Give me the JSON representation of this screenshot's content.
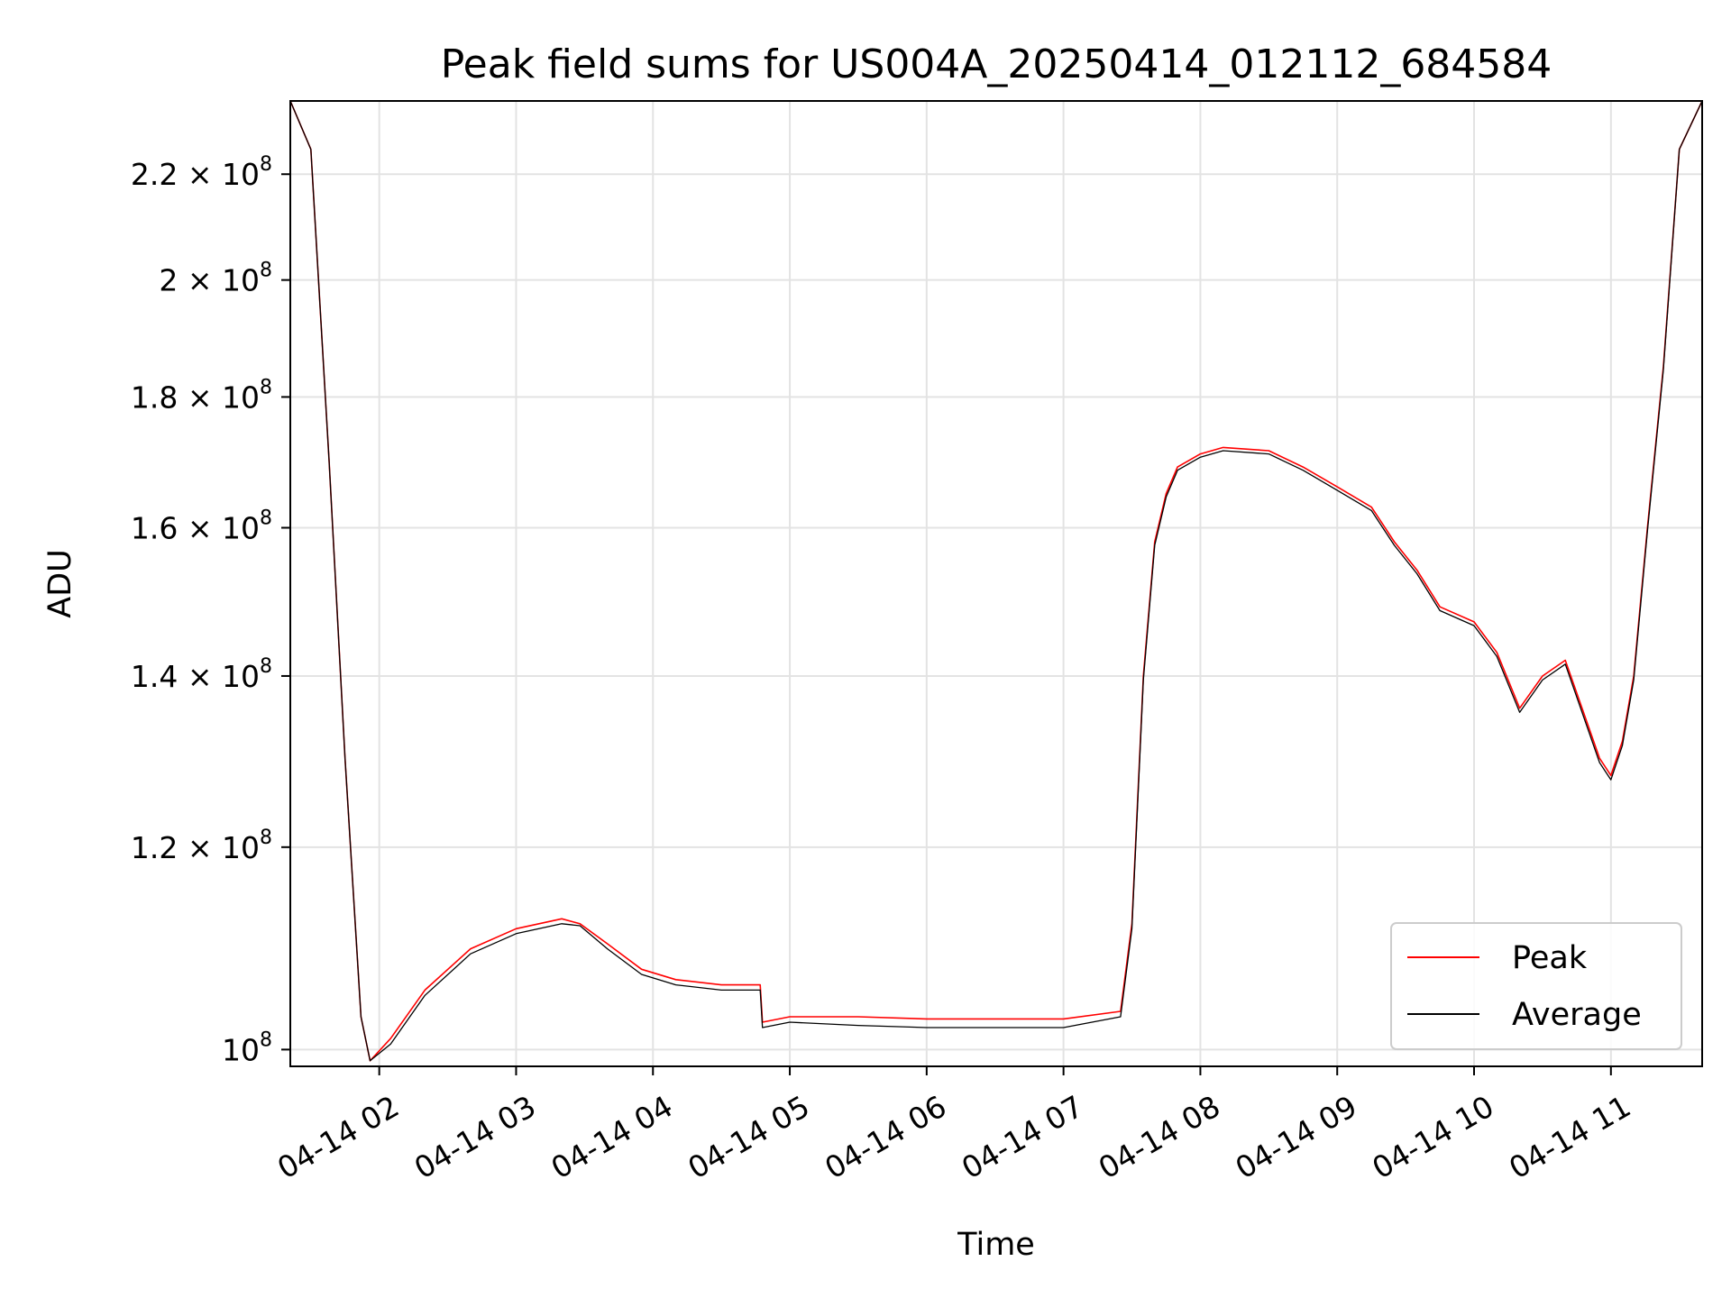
{
  "chart_data": {
    "type": "line",
    "title": "Peak field sums for US004A_20250414_012112_684584",
    "xlabel": "Time",
    "ylabel": "ADU",
    "yscale": "log",
    "grid": true,
    "legend_position": "lower right",
    "xlim": [
      "2025-04-14 01:21",
      "2025-04-14 11:40"
    ],
    "ylim": [
      98500000,
      235000000
    ],
    "x_ticks": [
      "04-14 02",
      "04-14 03",
      "04-14 04",
      "04-14 05",
      "04-14 06",
      "04-14 07",
      "04-14 08",
      "04-14 09",
      "04-14 10",
      "04-14 11"
    ],
    "x_tick_values": [
      "2025-04-14 02:00",
      "2025-04-14 03:00",
      "2025-04-14 04:00",
      "2025-04-14 05:00",
      "2025-04-14 06:00",
      "2025-04-14 07:00",
      "2025-04-14 08:00",
      "2025-04-14 09:00",
      "2025-04-14 10:00",
      "2025-04-14 11:00"
    ],
    "y_ticks": [
      {
        "value": 100000000,
        "mantissa": "10",
        "exponent": "8"
      },
      {
        "value": 120000000,
        "mantissa": "1.2 × 10",
        "exponent": "8"
      },
      {
        "value": 140000000,
        "mantissa": "1.4 × 10",
        "exponent": "8"
      },
      {
        "value": 160000000,
        "mantissa": "1.6 × 10",
        "exponent": "8"
      },
      {
        "value": 180000000,
        "mantissa": "1.8 × 10",
        "exponent": "8"
      },
      {
        "value": 200000000,
        "mantissa": "2 × 10",
        "exponent": "8"
      },
      {
        "value": 220000000,
        "mantissa": "2.2 × 10",
        "exponent": "8"
      }
    ],
    "series": [
      {
        "name": "Peak",
        "color": "#ff0000",
        "x": [
          "2025-04-14 01:21",
          "2025-04-14 01:30",
          "2025-04-14 01:38",
          "2025-04-14 01:45",
          "2025-04-14 01:52",
          "2025-04-14 01:56",
          "2025-04-14 02:05",
          "2025-04-14 02:20",
          "2025-04-14 02:40",
          "2025-04-14 03:00",
          "2025-04-14 03:20",
          "2025-04-14 03:28",
          "2025-04-14 03:40",
          "2025-04-14 03:55",
          "2025-04-14 04:10",
          "2025-04-14 04:30",
          "2025-04-14 04:47",
          "2025-04-14 04:48",
          "2025-04-14 05:00",
          "2025-04-14 05:30",
          "2025-04-14 06:00",
          "2025-04-14 06:30",
          "2025-04-14 07:00",
          "2025-04-14 07:25",
          "2025-04-14 07:30",
          "2025-04-14 07:35",
          "2025-04-14 07:40",
          "2025-04-14 07:45",
          "2025-04-14 07:50",
          "2025-04-14 08:00",
          "2025-04-14 08:10",
          "2025-04-14 08:30",
          "2025-04-14 08:45",
          "2025-04-14 09:00",
          "2025-04-14 09:15",
          "2025-04-14 09:25",
          "2025-04-14 09:35",
          "2025-04-14 09:45",
          "2025-04-14 10:00",
          "2025-04-14 10:10",
          "2025-04-14 10:20",
          "2025-04-14 10:30",
          "2025-04-14 10:40",
          "2025-04-14 10:55",
          "2025-04-14 11:00",
          "2025-04-14 11:05",
          "2025-04-14 11:10",
          "2025-04-14 11:16",
          "2025-04-14 11:23",
          "2025-04-14 11:30",
          "2025-04-14 11:40"
        ],
        "values": [
          235000000,
          225000000,
          170000000,
          130000000,
          103000000,
          99000000,
          101000000,
          105500000,
          109500000,
          111500000,
          112500000,
          112000000,
          110000000,
          107500000,
          106500000,
          106000000,
          106000000,
          102500000,
          103000000,
          103000000,
          102800000,
          102800000,
          102800000,
          103500000,
          112000000,
          140000000,
          158000000,
          165000000,
          169000000,
          171000000,
          172000000,
          171500000,
          169000000,
          166000000,
          163000000,
          158000000,
          154000000,
          149000000,
          147000000,
          143000000,
          136000000,
          140000000,
          142000000,
          130000000,
          128000000,
          132000000,
          140000000,
          160000000,
          185000000,
          225000000,
          235000000
        ]
      },
      {
        "name": "Average",
        "color": "#000000",
        "x": [
          "2025-04-14 01:21",
          "2025-04-14 01:30",
          "2025-04-14 01:38",
          "2025-04-14 01:45",
          "2025-04-14 01:52",
          "2025-04-14 01:56",
          "2025-04-14 02:05",
          "2025-04-14 02:20",
          "2025-04-14 02:40",
          "2025-04-14 03:00",
          "2025-04-14 03:20",
          "2025-04-14 03:28",
          "2025-04-14 03:40",
          "2025-04-14 03:55",
          "2025-04-14 04:10",
          "2025-04-14 04:30",
          "2025-04-14 04:47",
          "2025-04-14 04:48",
          "2025-04-14 05:00",
          "2025-04-14 05:30",
          "2025-04-14 06:00",
          "2025-04-14 06:30",
          "2025-04-14 07:00",
          "2025-04-14 07:25",
          "2025-04-14 07:30",
          "2025-04-14 07:35",
          "2025-04-14 07:40",
          "2025-04-14 07:45",
          "2025-04-14 07:50",
          "2025-04-14 08:00",
          "2025-04-14 08:10",
          "2025-04-14 08:30",
          "2025-04-14 08:45",
          "2025-04-14 09:00",
          "2025-04-14 09:15",
          "2025-04-14 09:25",
          "2025-04-14 09:35",
          "2025-04-14 09:45",
          "2025-04-14 10:00",
          "2025-04-14 10:10",
          "2025-04-14 10:20",
          "2025-04-14 10:30",
          "2025-04-14 10:40",
          "2025-04-14 10:55",
          "2025-04-14 11:00",
          "2025-04-14 11:05",
          "2025-04-14 11:10",
          "2025-04-14 11:16",
          "2025-04-14 11:23",
          "2025-04-14 11:30",
          "2025-04-14 11:40"
        ],
        "values": [
          235000000,
          225000000,
          170000000,
          130000000,
          103000000,
          99000000,
          100500000,
          105000000,
          109000000,
          111000000,
          112000000,
          111800000,
          109500000,
          107000000,
          106000000,
          105500000,
          105500000,
          102000000,
          102500000,
          102200000,
          102000000,
          102000000,
          102000000,
          103000000,
          111500000,
          139500000,
          157500000,
          164500000,
          168500000,
          170500000,
          171500000,
          171000000,
          168500000,
          165500000,
          162500000,
          157500000,
          153500000,
          148500000,
          146500000,
          142500000,
          135500000,
          139500000,
          141500000,
          129500000,
          127500000,
          131500000,
          139500000,
          159500000,
          184500000,
          225000000,
          235000000
        ]
      }
    ]
  }
}
